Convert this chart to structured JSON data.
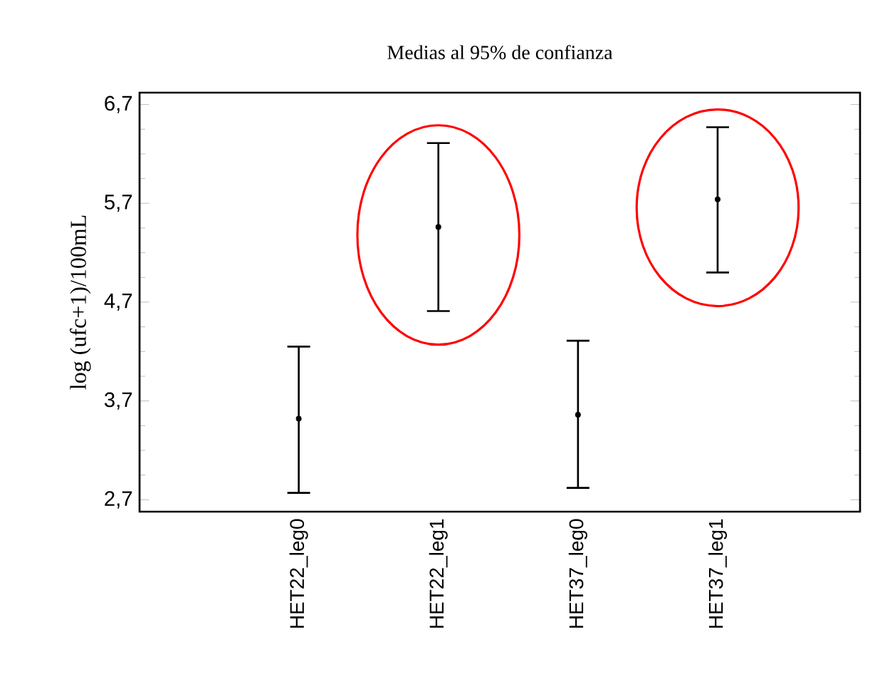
{
  "chart_data": {
    "type": "scatter",
    "title": "Medias al 95% de confianza",
    "ylabel": "log (ufc+1)/100mL",
    "categories": [
      "HET22_leg0",
      "HET22_leg1",
      "HET37_leg0",
      "HET37_leg1"
    ],
    "values": [
      3.52,
      5.46,
      3.56,
      5.74
    ],
    "errors": [
      [
        2.77,
        4.25
      ],
      [
        4.61,
        6.31
      ],
      [
        2.82,
        4.31
      ],
      [
        5.0,
        6.47
      ]
    ],
    "color": "#000000",
    "marker": "circle",
    "ylim": [
      2.58,
      6.82
    ],
    "yticks": [
      {
        "value": 2.7,
        "label": "2,7"
      },
      {
        "value": 3.7,
        "label": "3,7"
      },
      {
        "value": 4.7,
        "label": "4,7"
      },
      {
        "value": 5.7,
        "label": "5,7"
      },
      {
        "value": 6.7,
        "label": "6,7"
      }
    ],
    "grid": false
  }
}
